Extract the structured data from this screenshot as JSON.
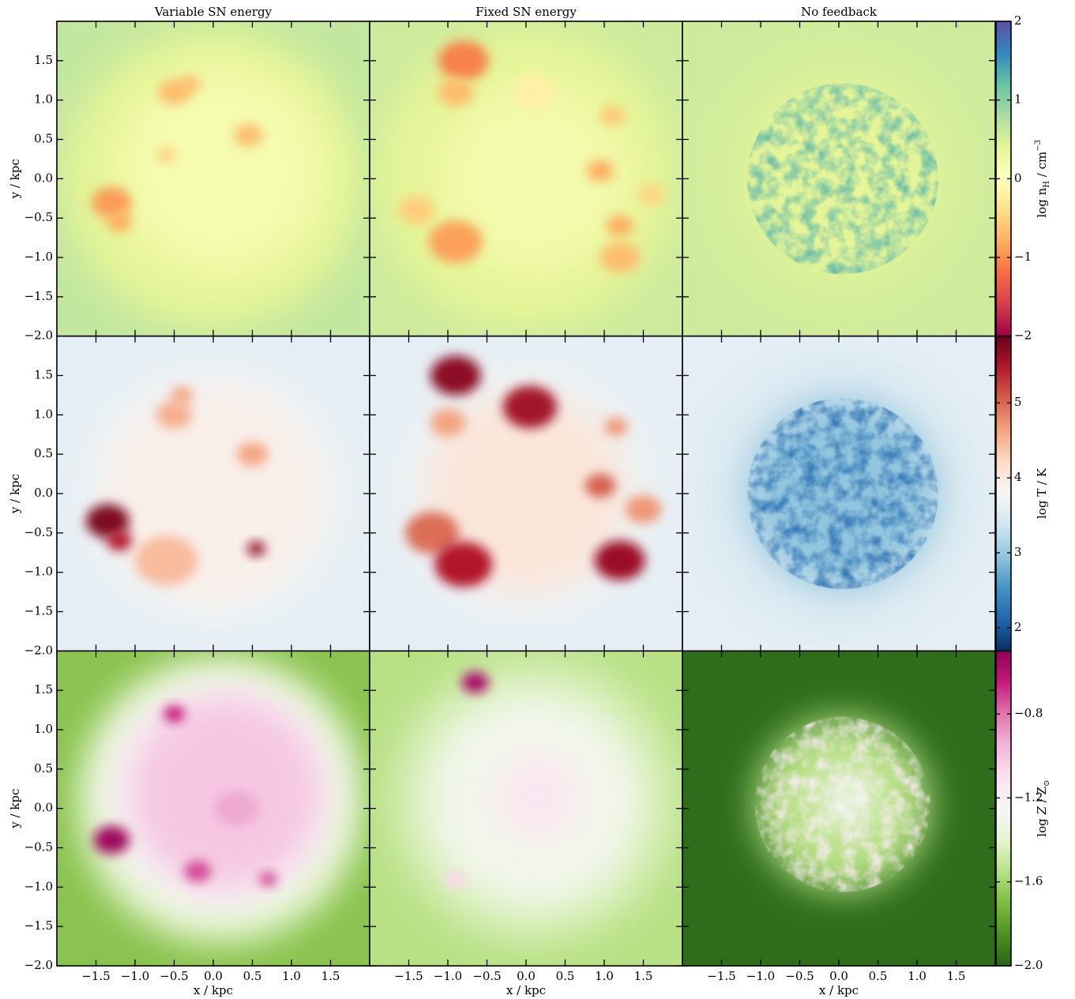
{
  "chart_data": {
    "type": "heatmap",
    "columns": [
      "Variable SN energy",
      "Fixed SN energy",
      "No feedback"
    ],
    "xlabel": "x / kpc",
    "ylabel": "y / kpc",
    "xlim": [
      -2.0,
      2.0
    ],
    "ylim": [
      -2.0,
      2.0
    ],
    "xticks": [
      {
        "value": -1.5,
        "label": "−1.5"
      },
      {
        "value": -1.0,
        "label": "−1.0"
      },
      {
        "value": -0.5,
        "label": "−0.5"
      },
      {
        "value": 0.0,
        "label": "0.0"
      },
      {
        "value": 0.5,
        "label": "0.5"
      },
      {
        "value": 1.0,
        "label": "1.0"
      },
      {
        "value": 1.5,
        "label": "1.5"
      }
    ],
    "yticks": [
      {
        "value": -2.0,
        "label": "−2.0"
      },
      {
        "value": -1.5,
        "label": "−1.5"
      },
      {
        "value": -1.0,
        "label": "−1.0"
      },
      {
        "value": -0.5,
        "label": "−0.5"
      },
      {
        "value": 0.0,
        "label": "0.0"
      },
      {
        "value": 0.5,
        "label": "0.5"
      },
      {
        "value": 1.0,
        "label": "1.0"
      },
      {
        "value": 1.5,
        "label": "1.5"
      }
    ],
    "rows": [
      {
        "colorbar": {
          "label": [
            {
              "text": "log n"
            },
            {
              "sub": "H"
            },
            {
              "text": " / cm"
            },
            {
              "sup": "−3"
            }
          ],
          "lim": [
            -2,
            2
          ],
          "ticks": [
            {
              "value": -2,
              "label": "−2"
            },
            {
              "value": -1,
              "label": "−1"
            },
            0,
            1,
            2
          ],
          "colors": [
            "#9e0142",
            "#d53e4f",
            "#f46d43",
            "#fdae61",
            "#fee08b",
            "#ffffbf",
            "#e6f598",
            "#abdda4",
            "#66c2a5",
            "#3288bd",
            "#5e4fa2"
          ]
        }
      },
      {
        "colorbar": {
          "label": [
            {
              "text": "log T / K"
            }
          ],
          "lim": [
            1.69,
            5.89
          ],
          "ticks": [
            2,
            3,
            4,
            5
          ],
          "colors": [
            "#053061",
            "#2166ac",
            "#4393c3",
            "#92c5de",
            "#d1e5f0",
            "#f7f7f7",
            "#fddbc7",
            "#f4a582",
            "#d6604d",
            "#b2182b",
            "#67001f"
          ]
        }
      },
      {
        "colorbar": {
          "label": [
            {
              "text": "log "
            },
            {
              "italic": "Z"
            },
            {
              "text": " / Z"
            },
            {
              "sub": "⊙"
            }
          ],
          "lim": [
            -2.0,
            -0.5
          ],
          "ticks": [
            {
              "value": -2.0,
              "label": "−2.0"
            },
            {
              "value": -1.6,
              "label": "−1.6"
            },
            {
              "value": -1.2,
              "label": "−1.2"
            },
            {
              "value": -0.8,
              "label": "−0.8"
            }
          ],
          "colors": [
            "#276419",
            "#4d9221",
            "#7fbc41",
            "#b8e186",
            "#e6f5d0",
            "#f7f7f7",
            "#fde0ef",
            "#f1b6da",
            "#de77ae",
            "#c51b7d",
            "#8e0152"
          ]
        }
      }
    ]
  }
}
